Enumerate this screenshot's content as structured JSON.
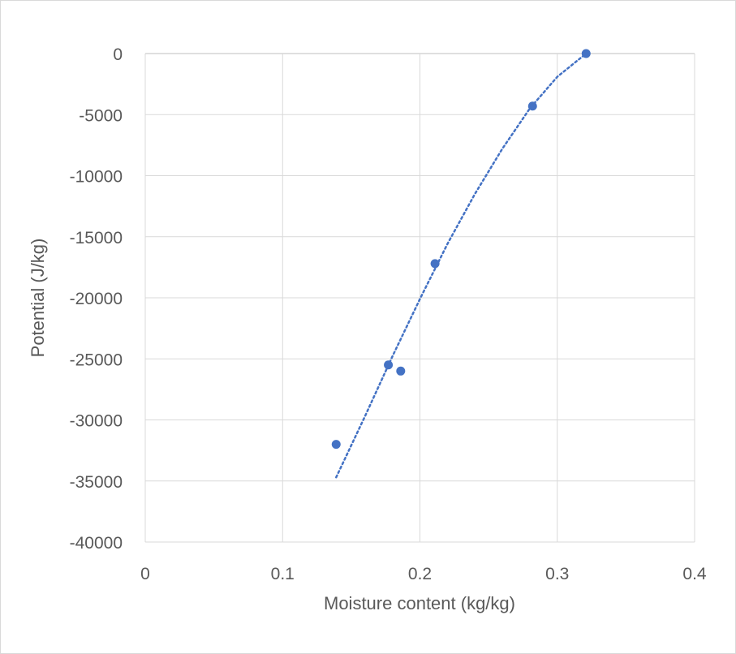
{
  "chart_data": {
    "type": "scatter",
    "title": "",
    "xlabel": "Moisture content (kg/kg)",
    "ylabel": "Potential (J/kg)",
    "xlim": [
      0,
      0.4
    ],
    "ylim": [
      -40000,
      0
    ],
    "y_axis_reversed": true,
    "grid": true,
    "legend": "none",
    "x_ticks": [
      "0",
      "0.1",
      "0.2",
      "0.3",
      "0.4"
    ],
    "y_ticks": [
      "-40000",
      "-35000",
      "-30000",
      "-25000",
      "-20000",
      "-15000",
      "-10000",
      "-5000",
      "0"
    ],
    "series": [
      {
        "color": "#4472c4",
        "points": [
          {
            "x": 0.139,
            "y": -32000
          },
          {
            "x": 0.177,
            "y": -25500
          },
          {
            "x": 0.186,
            "y": -26000
          },
          {
            "x": 0.211,
            "y": -17200
          },
          {
            "x": 0.282,
            "y": -4300
          },
          {
            "x": 0.321,
            "y": 0
          }
        ]
      }
    ],
    "trendline": {
      "style": "dotted",
      "color": "#4472c4",
      "points": [
        {
          "x": 0.139,
          "y": -34700
        },
        {
          "x": 0.16,
          "y": -29700
        },
        {
          "x": 0.18,
          "y": -24800
        },
        {
          "x": 0.2,
          "y": -20100
        },
        {
          "x": 0.22,
          "y": -15600
        },
        {
          "x": 0.24,
          "y": -11500
        },
        {
          "x": 0.26,
          "y": -7800
        },
        {
          "x": 0.28,
          "y": -4500
        },
        {
          "x": 0.3,
          "y": -1900
        },
        {
          "x": 0.321,
          "y": 0
        }
      ]
    }
  }
}
